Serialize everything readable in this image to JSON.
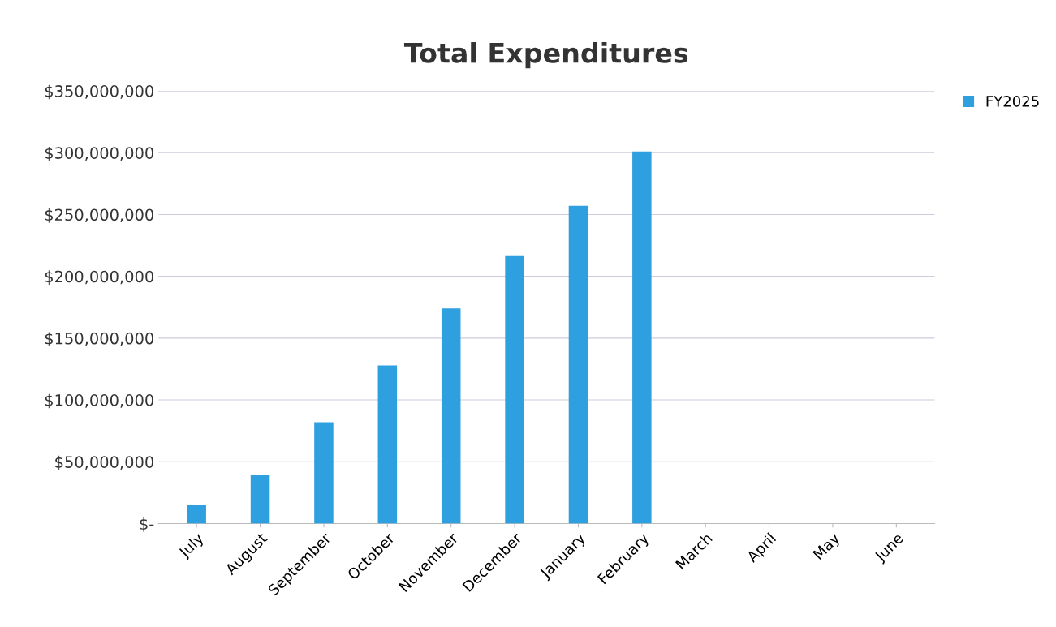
{
  "chart_data": {
    "type": "bar",
    "title": "Total Expenditures",
    "categories": [
      "July",
      "August",
      "September",
      "October",
      "November",
      "December",
      "January",
      "February",
      "March",
      "April",
      "May",
      "June"
    ],
    "series": [
      {
        "name": "FY2025",
        "color": "#2e9fdf",
        "values": [
          15000000,
          39500000,
          82000000,
          128000000,
          174000000,
          217000000,
          257000000,
          301000000,
          null,
          null,
          null,
          null
        ]
      }
    ],
    "ylim": [
      0,
      350000000
    ],
    "yticks": [
      {
        "value": 0,
        "label": "$-"
      },
      {
        "value": 50000000,
        "label": "$50,000,000"
      },
      {
        "value": 100000000,
        "label": "$100,000,000"
      },
      {
        "value": 150000000,
        "label": "$150,000,000"
      },
      {
        "value": 200000000,
        "label": "$200,000,000"
      },
      {
        "value": 250000000,
        "label": "$250,000,000"
      },
      {
        "value": 300000000,
        "label": "$300,000,000"
      },
      {
        "value": 350000000,
        "label": "$350,000,000"
      }
    ],
    "grid": "y",
    "legend": "top right"
  }
}
